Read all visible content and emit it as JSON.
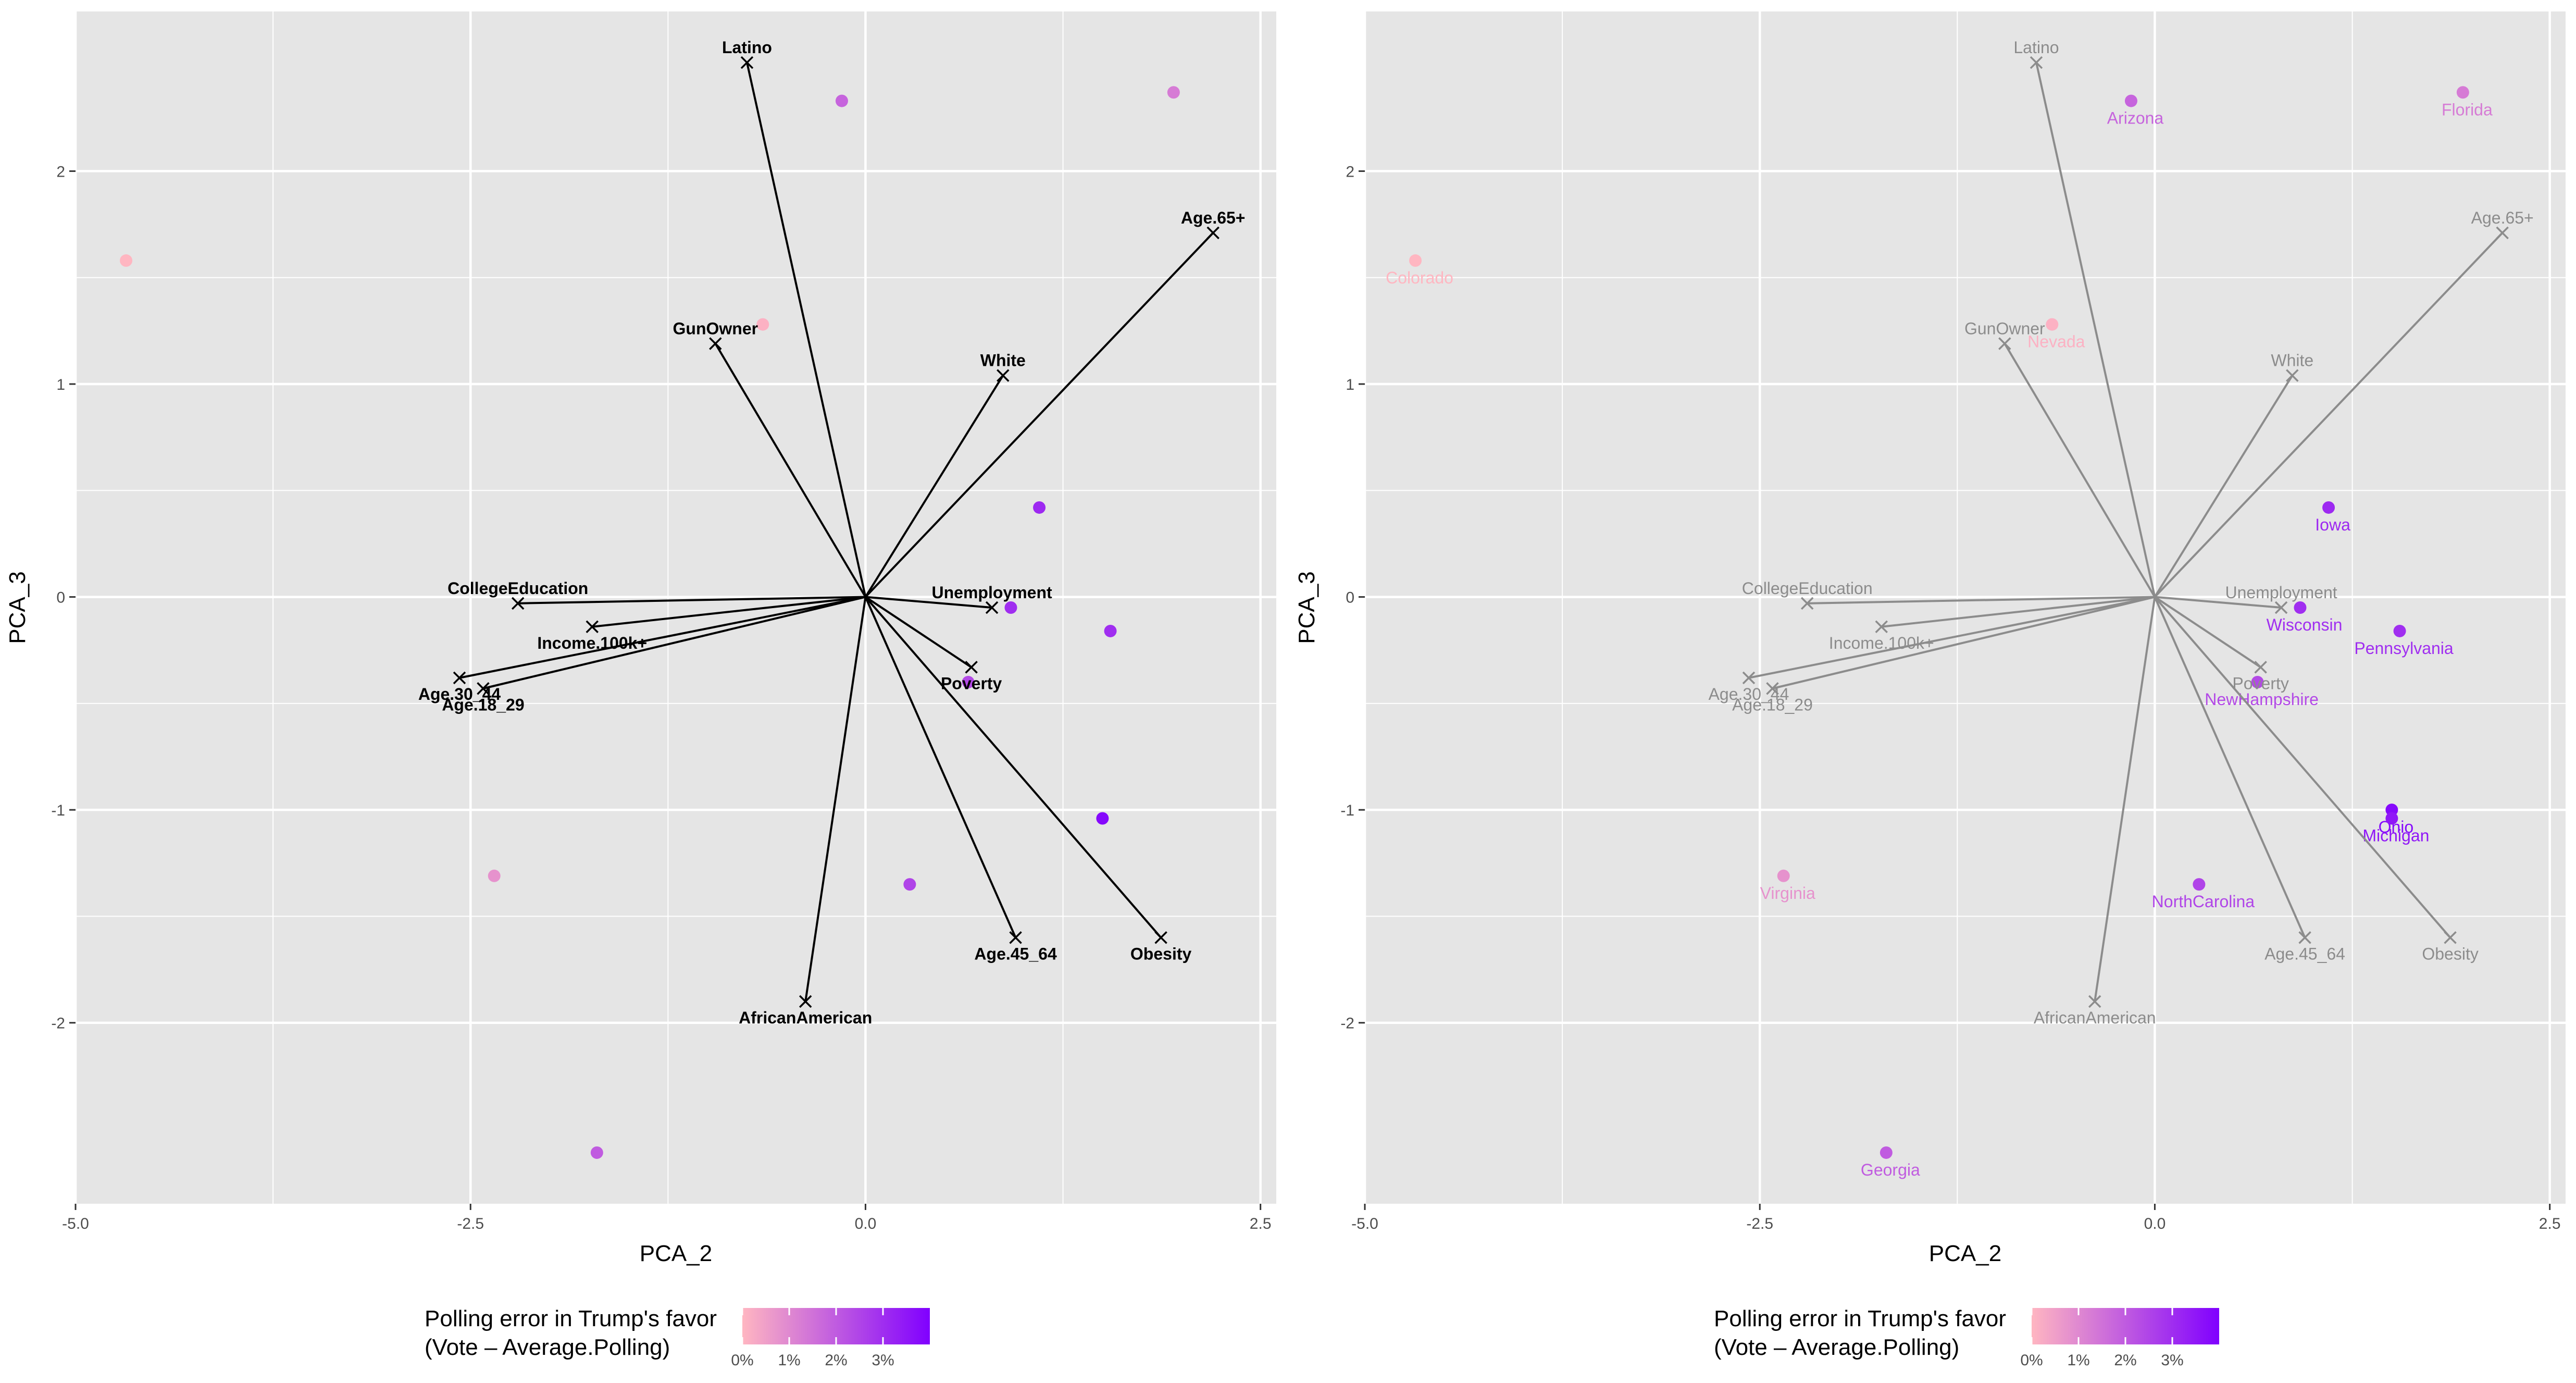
{
  "chart_data": [
    {
      "type": "scatter",
      "title": "",
      "xlabel": "PCA_2",
      "ylabel": "PCA_3",
      "xlim": [
        -5.0,
        2.6
      ],
      "ylim": [
        -2.85,
        2.75
      ],
      "x_ticks": [
        -5.0,
        -2.5,
        0.0,
        2.5
      ],
      "x_tick_labels": [
        "-5.0",
        "-2.5",
        "0.0",
        "2.5"
      ],
      "y_ticks": [
        -2,
        -1,
        0,
        1,
        2
      ],
      "y_tick_labels": [
        "-2",
        "-1",
        "0",
        "1",
        "2"
      ],
      "grid": true,
      "point_labels": false,
      "arrow_color": "#000000",
      "arrow_label_color": "#000000",
      "arrow_label_bold": true,
      "points": [
        {
          "x": -4.68,
          "y": 1.58,
          "error": 0.0
        },
        {
          "x": -0.15,
          "y": 2.33,
          "error": 1.8
        },
        {
          "x": 1.95,
          "y": 2.37,
          "error": 1.3
        },
        {
          "x": -0.65,
          "y": 1.28,
          "error": 0.1
        },
        {
          "x": 1.1,
          "y": 0.42,
          "error": 3.1
        },
        {
          "x": 0.92,
          "y": -0.05,
          "error": 3.0
        },
        {
          "x": 1.55,
          "y": -0.16,
          "error": 3.0
        },
        {
          "x": 0.65,
          "y": -0.4,
          "error": 2.4
        },
        {
          "x": 1.5,
          "y": -1.04,
          "error": 3.8
        },
        {
          "x": 0.28,
          "y": -1.35,
          "error": 2.5
        },
        {
          "x": -2.35,
          "y": -1.31,
          "error": 0.8
        },
        {
          "x": -1.7,
          "y": -2.61,
          "error": 2.0
        }
      ],
      "loadings": [
        {
          "name": "Latino",
          "x": -0.75,
          "y": 2.51
        },
        {
          "name": "Age.65+",
          "x": 2.2,
          "y": 1.71
        },
        {
          "name": "GunOwner",
          "x": -0.95,
          "y": 1.19
        },
        {
          "name": "White",
          "x": 0.87,
          "y": 1.04
        },
        {
          "name": "CollegeEducation",
          "x": -2.2,
          "y": -0.03
        },
        {
          "name": "Income.100k+",
          "x": -1.73,
          "y": -0.14
        },
        {
          "name": "Unemployment",
          "x": 0.8,
          "y": -0.05
        },
        {
          "name": "Poverty",
          "x": 0.67,
          "y": -0.33
        },
        {
          "name": "Age.30_44",
          "x": -2.57,
          "y": -0.38
        },
        {
          "name": "Age.18_29",
          "x": -2.42,
          "y": -0.43
        },
        {
          "name": "Age.45_64",
          "x": 0.95,
          "y": -1.6
        },
        {
          "name": "Obesity",
          "x": 1.87,
          "y": -1.6
        },
        {
          "name": "AfricanAmerican",
          "x": -0.38,
          "y": -1.9
        }
      ]
    },
    {
      "type": "scatter",
      "title": "",
      "xlabel": "PCA_2",
      "ylabel": "PCA_3",
      "xlim": [
        -5.0,
        2.6
      ],
      "ylim": [
        -2.85,
        2.75
      ],
      "x_ticks": [
        -5.0,
        -2.5,
        0.0,
        2.5
      ],
      "x_tick_labels": [
        "-5.0",
        "-2.5",
        "0.0",
        "2.5"
      ],
      "y_ticks": [
        -2,
        -1,
        0,
        1,
        2
      ],
      "y_tick_labels": [
        "-2",
        "-1",
        "0",
        "1",
        "2"
      ],
      "grid": true,
      "point_labels": true,
      "arrow_color": "#8c8c8c",
      "arrow_label_color": "#8c8c8c",
      "arrow_label_bold": false,
      "points": [
        {
          "name": "Colorado",
          "x": -4.68,
          "y": 1.58,
          "error": 0.0
        },
        {
          "name": "Arizona",
          "x": -0.15,
          "y": 2.33,
          "error": 1.8
        },
        {
          "name": "Florida",
          "x": 1.95,
          "y": 2.37,
          "error": 1.3
        },
        {
          "name": "Nevada",
          "x": -0.65,
          "y": 1.28,
          "error": 0.1
        },
        {
          "name": "Iowa",
          "x": 1.1,
          "y": 0.42,
          "error": 3.1
        },
        {
          "name": "Wisconsin",
          "x": 0.92,
          "y": -0.05,
          "error": 3.0
        },
        {
          "name": "Pennsylvania",
          "x": 1.55,
          "y": -0.16,
          "error": 3.0
        },
        {
          "name": "NewHampshire",
          "x": 0.65,
          "y": -0.4,
          "error": 2.4
        },
        {
          "name": "Ohio",
          "x": 1.5,
          "y": -1.0,
          "error": 3.8
        },
        {
          "name": "Michigan",
          "x": 1.5,
          "y": -1.04,
          "error": 3.5
        },
        {
          "name": "NorthCarolina",
          "x": 0.28,
          "y": -1.35,
          "error": 2.5
        },
        {
          "name": "Virginia",
          "x": -2.35,
          "y": -1.31,
          "error": 0.8
        },
        {
          "name": "Georgia",
          "x": -1.7,
          "y": -2.61,
          "error": 2.0
        }
      ],
      "loadings": [
        {
          "name": "Latino",
          "x": -0.75,
          "y": 2.51
        },
        {
          "name": "Age.65+",
          "x": 2.2,
          "y": 1.71
        },
        {
          "name": "GunOwner",
          "x": -0.95,
          "y": 1.19
        },
        {
          "name": "White",
          "x": 0.87,
          "y": 1.04
        },
        {
          "name": "CollegeEducation",
          "x": -2.2,
          "y": -0.03
        },
        {
          "name": "Income.100k+",
          "x": -1.73,
          "y": -0.14
        },
        {
          "name": "Unemployment",
          "x": 0.8,
          "y": -0.05
        },
        {
          "name": "Poverty",
          "x": 0.67,
          "y": -0.33
        },
        {
          "name": "Age.30_44",
          "x": -2.57,
          "y": -0.38
        },
        {
          "name": "Age.18_29",
          "x": -2.42,
          "y": -0.43
        },
        {
          "name": "Age.45_64",
          "x": 0.95,
          "y": -1.6
        },
        {
          "name": "Obesity",
          "x": 1.87,
          "y": -1.6
        },
        {
          "name": "AfricanAmerican",
          "x": -0.38,
          "y": -1.9
        }
      ]
    }
  ],
  "legend": {
    "title_line1": "Polling error in Trump's favor",
    "title_line2": "(Vote – Average.Polling)",
    "ticks": [
      0,
      1,
      2,
      3
    ],
    "tick_labels": [
      "0%",
      "1%",
      "2%",
      "3%"
    ],
    "range": [
      0,
      4
    ],
    "color_low": "#ffb6c1",
    "color_high": "#8000ff",
    "placement": "bottom"
  },
  "colors": {
    "panel_background": "#e5e5e5",
    "grid": "#ffffff",
    "axis_text": "#4d4d4d"
  }
}
